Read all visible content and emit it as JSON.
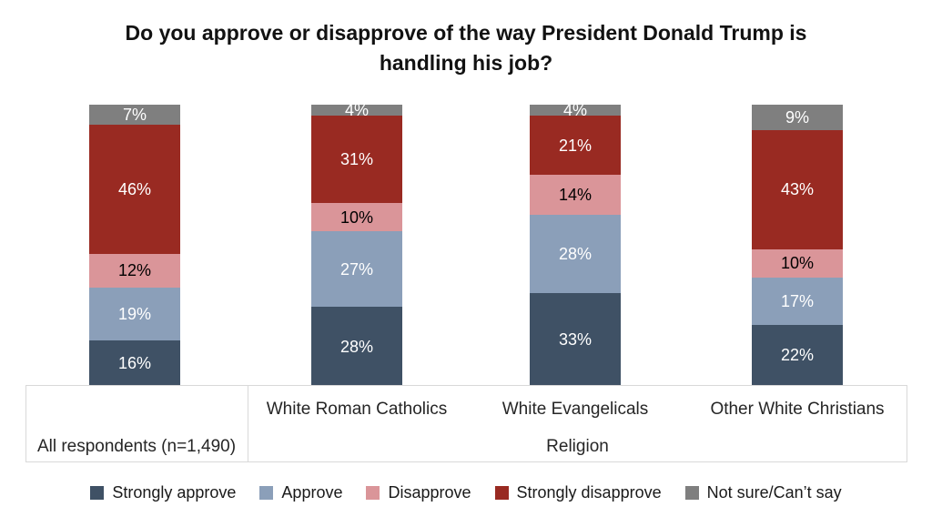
{
  "chart_data": {
    "type": "bar",
    "stacked": true,
    "orientation": "vertical",
    "title": "Do you approve or disapprove of the way President Donald Trump is handling his job?",
    "value_suffix": "%",
    "ylim": [
      0,
      100
    ],
    "grid": false,
    "legend_position": "bottom",
    "categories": [
      "All respondents (n=1,490)",
      "White Roman Catholics",
      "White Evangelicals",
      "Other White Christians"
    ],
    "axis_group": {
      "label": "Religion",
      "members": [
        "White Roman Catholics",
        "White Evangelicals",
        "Other White Christians"
      ]
    },
    "series": [
      {
        "name": "Strongly approve",
        "color": "#3f5165",
        "label_color": "#ffffff",
        "values": [
          16,
          28,
          33,
          22
        ]
      },
      {
        "name": "Approve",
        "color": "#8b9fb9",
        "label_color": "#ffffff",
        "values": [
          19,
          27,
          28,
          17
        ]
      },
      {
        "name": "Disapprove",
        "color": "#da9599",
        "label_color": "#000000",
        "values": [
          12,
          10,
          14,
          10
        ]
      },
      {
        "name": "Strongly disapprove",
        "color": "#992a22",
        "label_color": "#ffffff",
        "values": [
          46,
          31,
          21,
          43
        ]
      },
      {
        "name": "Not sure/Can’t say",
        "color": "#7f7f7f",
        "label_color": "#ffffff",
        "values": [
          7,
          4,
          4,
          9
        ]
      }
    ],
    "colors": {
      "axis_border": "#d9d9d9",
      "title_text": "#121212",
      "category_text": "#262626"
    }
  }
}
